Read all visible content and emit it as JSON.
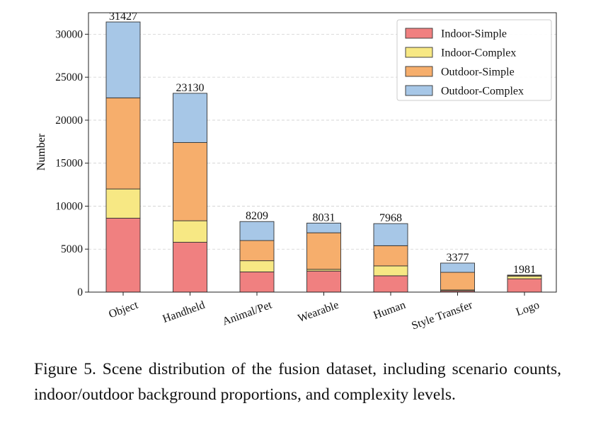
{
  "chart_data": {
    "type": "bar",
    "stacked": true,
    "title": "",
    "xlabel": "",
    "ylabel": "Number",
    "ylim": [
      0,
      32500
    ],
    "yticks": [
      0,
      5000,
      10000,
      15000,
      20000,
      25000,
      30000
    ],
    "grid": "horizontal dashed",
    "legend_position": "top-right",
    "categories": [
      "Object",
      "Handheld",
      "Animal/Pet",
      "Wearable",
      "Human",
      "Style Transfer",
      "Logo"
    ],
    "totals": [
      31427,
      23130,
      8209,
      8031,
      7968,
      3377,
      1981
    ],
    "series": [
      {
        "name": "Indoor-Simple",
        "color": "#f08080",
        "values": [
          8600,
          5800,
          2350,
          2450,
          1900,
          150,
          1550
        ]
      },
      {
        "name": "Indoor-Complex",
        "color": "#f7e884",
        "values": [
          3400,
          2500,
          1300,
          200,
          1150,
          100,
          300
        ]
      },
      {
        "name": "Outdoor-Simple",
        "color": "#f6ae6c",
        "values": [
          10600,
          9100,
          2350,
          4250,
          2350,
          2050,
          100
        ]
      },
      {
        "name": "Outdoor-Complex",
        "color": "#a7c7e7",
        "values": [
          8827,
          5730,
          2209,
          1131,
          2568,
          1077,
          31
        ]
      }
    ]
  },
  "caption": "Figure 5.  Scene distribution of the fusion dataset, including scenario counts, indoor/outdoor background proportions, and complexity levels."
}
